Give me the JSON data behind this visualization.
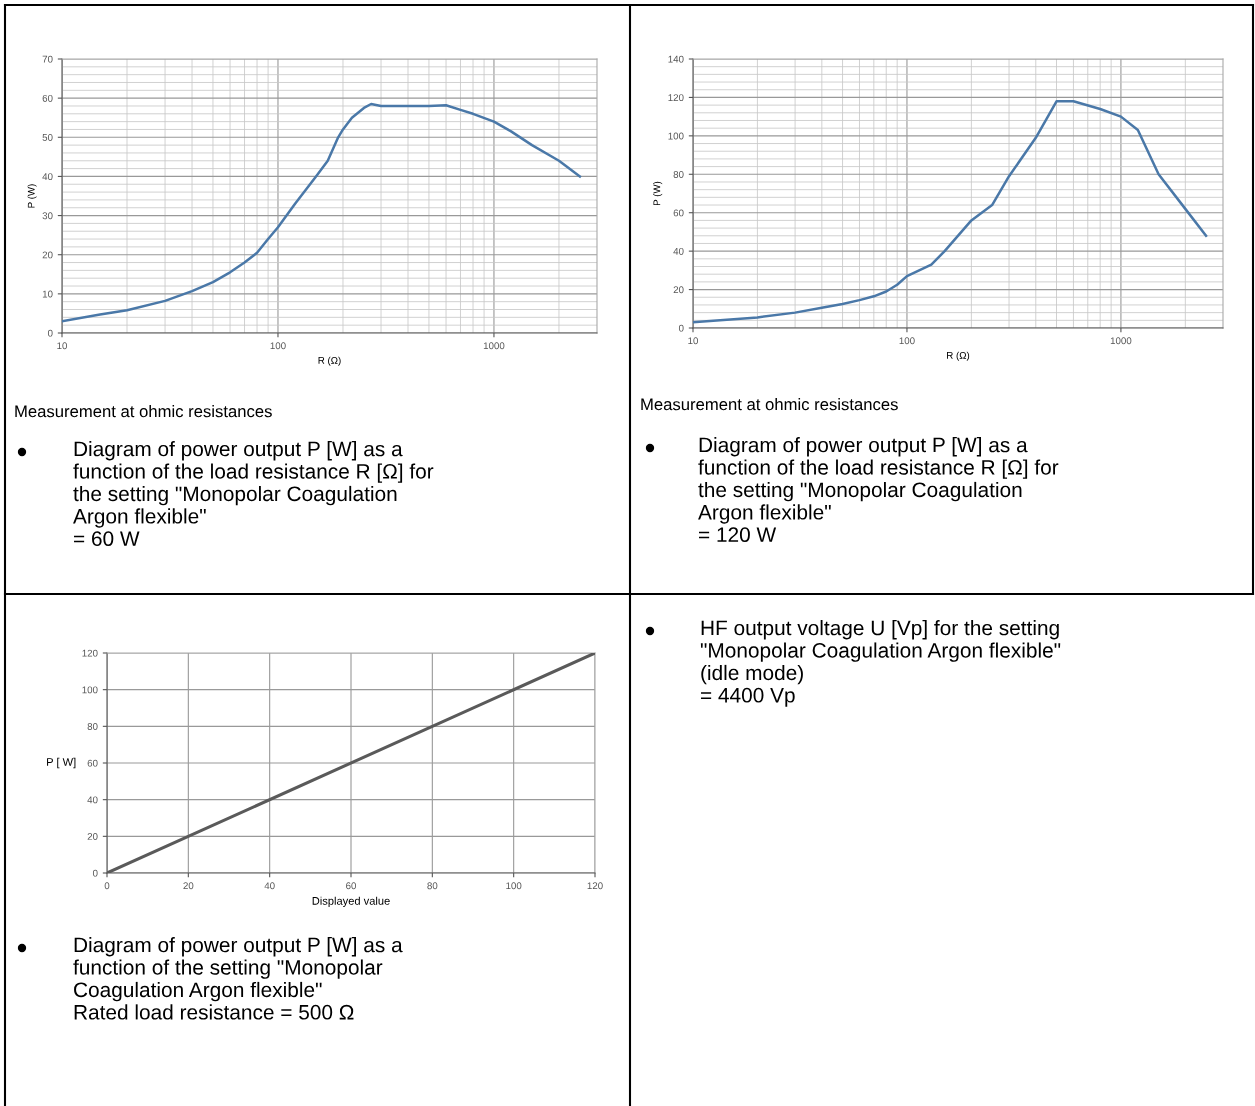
{
  "chart_data": [
    {
      "type": "line",
      "xlabel": "R (Ω)",
      "ylabel": "P (W)",
      "log": "x",
      "grid": true,
      "x": [
        10,
        15,
        20,
        30,
        40,
        50,
        60,
        70,
        80,
        90,
        100,
        120,
        150,
        170,
        190,
        200,
        220,
        250,
        270,
        300,
        400,
        500,
        600,
        700,
        800,
        1000,
        1200,
        1500,
        2000,
        2500
      ],
      "series": [
        {
          "color": "#4a78a8",
          "values": [
            3,
            4.7,
            5.8,
            8.2,
            10.7,
            13,
            15.5,
            18,
            20.5,
            24,
            27,
            33,
            40,
            44,
            50,
            52,
            55,
            57.5,
            58.5,
            58,
            58,
            58,
            58.2,
            57,
            56,
            54,
            51.5,
            48,
            44,
            40
          ]
        }
      ],
      "xlim": [
        10,
        3000
      ],
      "xticks": [
        10,
        100,
        1000,
        {
          "value": 20,
          "label": null
        },
        {
          "value": 30,
          "label": null
        },
        {
          "value": 40,
          "label": null
        },
        {
          "value": 50,
          "label": null
        },
        {
          "value": 60,
          "label": null
        },
        {
          "value": 70,
          "label": null
        },
        {
          "value": 80,
          "label": null
        },
        {
          "value": 90,
          "label": null
        },
        {
          "value": 200,
          "label": null
        },
        {
          "value": 300,
          "label": null
        },
        {
          "value": 400,
          "label": null
        },
        {
          "value": 500,
          "label": null
        },
        {
          "value": 600,
          "label": null
        },
        {
          "value": 700,
          "label": null
        },
        {
          "value": 800,
          "label": null
        },
        {
          "value": 900,
          "label": null
        },
        {
          "value": 2000,
          "label": null
        }
      ],
      "ylim": [
        0,
        70
      ],
      "yticks": [
        0,
        10,
        20,
        30,
        40,
        50,
        60,
        70,
        {
          "value": 2,
          "label": null
        },
        {
          "value": 4,
          "label": null
        },
        {
          "value": 6,
          "label": null
        },
        {
          "value": 8,
          "label": null
        },
        {
          "value": 12,
          "label": null
        },
        {
          "value": 14,
          "label": null
        },
        {
          "value": 16,
          "label": null
        },
        {
          "value": 18,
          "label": null
        },
        {
          "value": 22,
          "label": null
        },
        {
          "value": 24,
          "label": null
        },
        {
          "value": 26,
          "label": null
        },
        {
          "value": 28,
          "label": null
        },
        {
          "value": 32,
          "label": null
        },
        {
          "value": 34,
          "label": null
        },
        {
          "value": 36,
          "label": null
        },
        {
          "value": 38,
          "label": null
        },
        {
          "value": 42,
          "label": null
        },
        {
          "value": 44,
          "label": null
        },
        {
          "value": 46,
          "label": null
        },
        {
          "value": 48,
          "label": null
        },
        {
          "value": 52,
          "label": null
        },
        {
          "value": 54,
          "label": null
        },
        {
          "value": 56,
          "label": null
        },
        {
          "value": 58,
          "label": null
        },
        {
          "value": 62,
          "label": null
        },
        {
          "value": 64,
          "label": null
        },
        {
          "value": 66,
          "label": null
        },
        {
          "value": 68,
          "label": null
        }
      ],
      "annotations": [
        "Measurement at ohmic resistances",
        "Diagram of power output P [W] as a\nfunction of the load resistance R [Ω] for\nthe setting \"Monopolar Coagulation\nArgon flexible\"\n= 60 W"
      ]
    },
    {
      "type": "line",
      "xlabel": "R (Ω)",
      "ylabel": "P (W)",
      "log": "x",
      "grid": true,
      "x": [
        10,
        20,
        30,
        40,
        50,
        60,
        70,
        80,
        90,
        100,
        130,
        150,
        200,
        250,
        300,
        400,
        500,
        600,
        800,
        1000,
        1200,
        1500,
        2000,
        2500
      ],
      "series": [
        {
          "color": "#4a78a8",
          "values": [
            3,
            5.5,
            8,
            10.5,
            12.5,
            14.5,
            16.5,
            19,
            22.5,
            27,
            33,
            40,
            56,
            64,
            79,
            99,
            118,
            118,
            114,
            110,
            103,
            80,
            62,
            48
          ]
        }
      ],
      "xlim": [
        10,
        3000
      ],
      "xticks": [
        10,
        100,
        1000,
        {
          "value": 20,
          "label": null
        },
        {
          "value": 30,
          "label": null
        },
        {
          "value": 40,
          "label": null
        },
        {
          "value": 50,
          "label": null
        },
        {
          "value": 60,
          "label": null
        },
        {
          "value": 70,
          "label": null
        },
        {
          "value": 80,
          "label": null
        },
        {
          "value": 90,
          "label": null
        },
        {
          "value": 200,
          "label": null
        },
        {
          "value": 300,
          "label": null
        },
        {
          "value": 400,
          "label": null
        },
        {
          "value": 500,
          "label": null
        },
        {
          "value": 600,
          "label": null
        },
        {
          "value": 700,
          "label": null
        },
        {
          "value": 800,
          "label": null
        },
        {
          "value": 900,
          "label": null
        },
        {
          "value": 2000,
          "label": null
        }
      ],
      "ylim": [
        0,
        140
      ],
      "yticks": [
        0,
        20,
        40,
        60,
        80,
        100,
        120,
        140,
        {
          "value": 4,
          "label": null
        },
        {
          "value": 8,
          "label": null
        },
        {
          "value": 12,
          "label": null
        },
        {
          "value": 16,
          "label": null
        },
        {
          "value": 24,
          "label": null
        },
        {
          "value": 28,
          "label": null
        },
        {
          "value": 32,
          "label": null
        },
        {
          "value": 36,
          "label": null
        },
        {
          "value": 44,
          "label": null
        },
        {
          "value": 48,
          "label": null
        },
        {
          "value": 52,
          "label": null
        },
        {
          "value": 56,
          "label": null
        },
        {
          "value": 64,
          "label": null
        },
        {
          "value": 68,
          "label": null
        },
        {
          "value": 72,
          "label": null
        },
        {
          "value": 76,
          "label": null
        },
        {
          "value": 84,
          "label": null
        },
        {
          "value": 88,
          "label": null
        },
        {
          "value": 92,
          "label": null
        },
        {
          "value": 96,
          "label": null
        },
        {
          "value": 104,
          "label": null
        },
        {
          "value": 108,
          "label": null
        },
        {
          "value": 112,
          "label": null
        },
        {
          "value": 116,
          "label": null
        },
        {
          "value": 124,
          "label": null
        },
        {
          "value": 128,
          "label": null
        },
        {
          "value": 132,
          "label": null
        },
        {
          "value": 136,
          "label": null
        }
      ],
      "annotations": [
        "Measurement at ohmic resistances",
        "Diagram of power output P [W] as a\nfunction of the load resistance R [Ω] for\nthe setting \"Monopolar Coagulation\nArgon flexible\"\n= 120 W"
      ]
    },
    {
      "type": "line",
      "xlabel": "Displayed value",
      "ylabel": "P [ W]",
      "grid": true,
      "x": [
        0,
        120
      ],
      "series": [
        {
          "color": "#5a5a5a",
          "values": [
            0,
            120
          ]
        }
      ],
      "xlim": [
        0,
        120
      ],
      "xticks": [
        0,
        20,
        40,
        60,
        80,
        100,
        120
      ],
      "ylim": [
        0,
        120
      ],
      "yticks": [
        0,
        20,
        40,
        60,
        80,
        100,
        120
      ],
      "annotations": [
        "Diagram of power output P [W] as a\nfunction of the setting \"Monopolar\nCoagulation Argon flexible\"\nRated load resistance = 500 Ω"
      ]
    },
    {
      "type": "other",
      "annotations": [
        "HF output voltage U [Vp] for the setting\n\"Monopolar Coagulation Argon flexible\"\n(idle mode)\n= 4400 Vp"
      ]
    }
  ]
}
